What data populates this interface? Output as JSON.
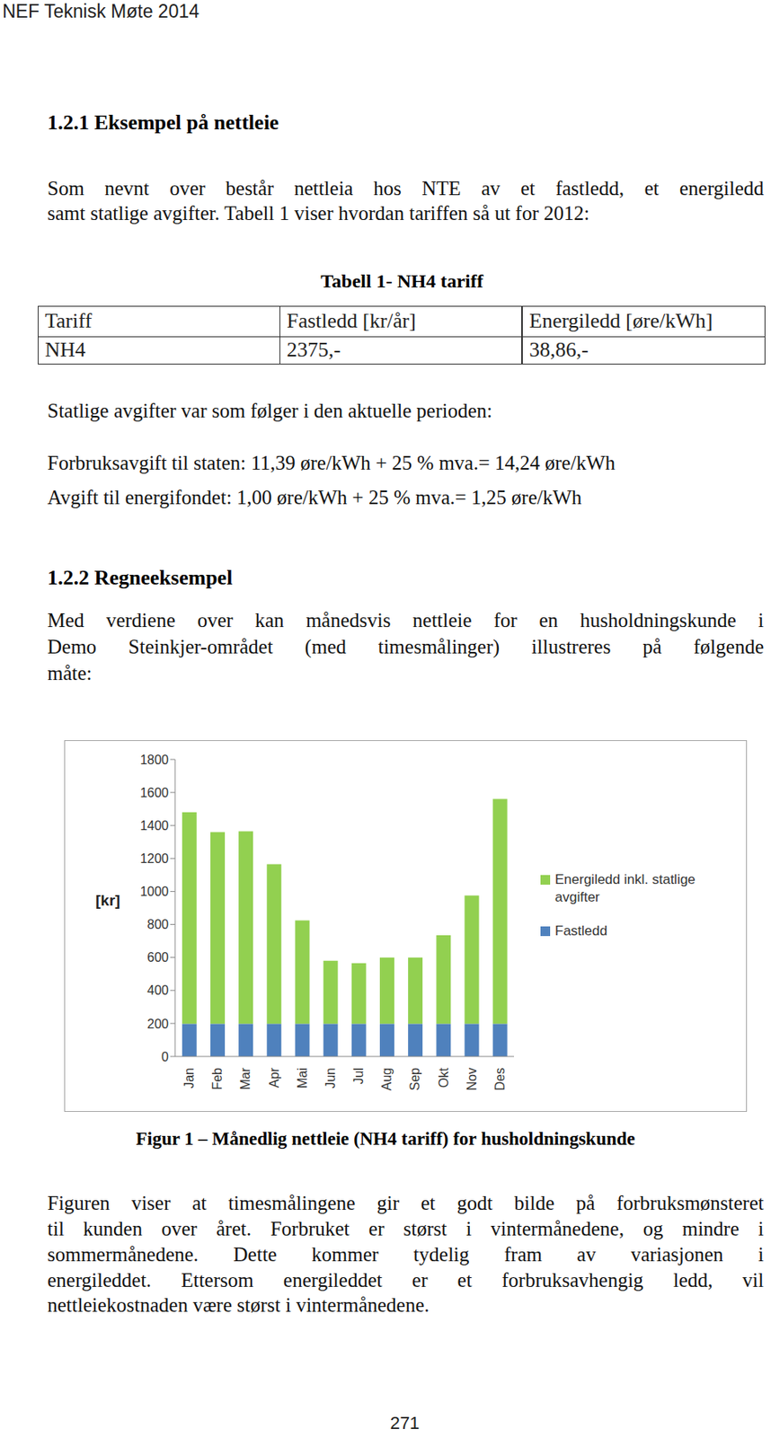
{
  "header": "NEF Teknisk Møte 2014",
  "section1_title": "1.2.1 Eksempel på nettleie",
  "paragraph1": [
    "Som nevnt over består nettleia hos NTE av et fastledd, et energiledd",
    "samt statlige avgifter. Tabell 1 viser hvordan tariffen så ut for 2012:"
  ],
  "table": {
    "title": "Tabell 1- NH4 tariff",
    "rows": [
      [
        "Tariff",
        "Fastledd [kr/år]",
        "Energiledd [øre/kWh]"
      ],
      [
        "NH4",
        "2375,-",
        "38,86,-"
      ]
    ]
  },
  "paragraph2": [
    "Statlige avgifter var som følger i den aktuelle perioden:"
  ],
  "fees": [
    "Forbruksavgift til staten: 11,39 øre/kWh + 25 % mva.= 14,24 øre/kWh",
    "Avgift til energifondet: 1,00 øre/kWh + 25 % mva.= 1,25 øre/kWh"
  ],
  "section2_title": "1.2.2 Regneeksempel",
  "paragraph3": [
    "Med verdiene over kan månedsvis nettleie for en husholdningskunde i",
    "Demo Steinkjer-området (med timesmålinger) illustreres på følgende",
    "måte:"
  ],
  "chart_data": {
    "type": "bar",
    "stacked": true,
    "ylabel": "[kr]",
    "categories": [
      "Jan",
      "Feb",
      "Mar",
      "Apr",
      "Mai",
      "Jun",
      "Jul",
      "Aug",
      "Sep",
      "Okt",
      "Nov",
      "Des"
    ],
    "series": [
      {
        "name": "Fastledd",
        "color": "#4f81bd",
        "values": [
          198,
          198,
          198,
          198,
          198,
          198,
          198,
          198,
          198,
          198,
          198,
          198
        ]
      },
      {
        "name": "Energiledd inkl. statlige avgifter",
        "color": "#92d050",
        "values": [
          1282,
          1162,
          1167,
          967,
          627,
          382,
          367,
          402,
          402,
          537,
          777,
          1362
        ]
      }
    ],
    "ylim": [
      0,
      1800
    ],
    "yticks": [
      0,
      200,
      400,
      600,
      800,
      1000,
      1200,
      1400,
      1600,
      1800
    ],
    "grid": false,
    "legend": "right"
  },
  "caption": "Figur 1 – Månedlig nettleie (NH4 tariff) for husholdningskunde",
  "paragraph4": [
    "Figuren viser at timesmålingene gir et godt bilde på forbruksmønsteret",
    "til kunden over året. Forbruket er størst i vintermånedene, og mindre i",
    "sommermånedene. Dette kommer tydelig fram av variasjonen i",
    "energileddet. Ettersom energileddet er et forbruksavhengig ledd, vil",
    "nettleiekostnaden være størst i vintermånedene."
  ],
  "page_number": "271"
}
